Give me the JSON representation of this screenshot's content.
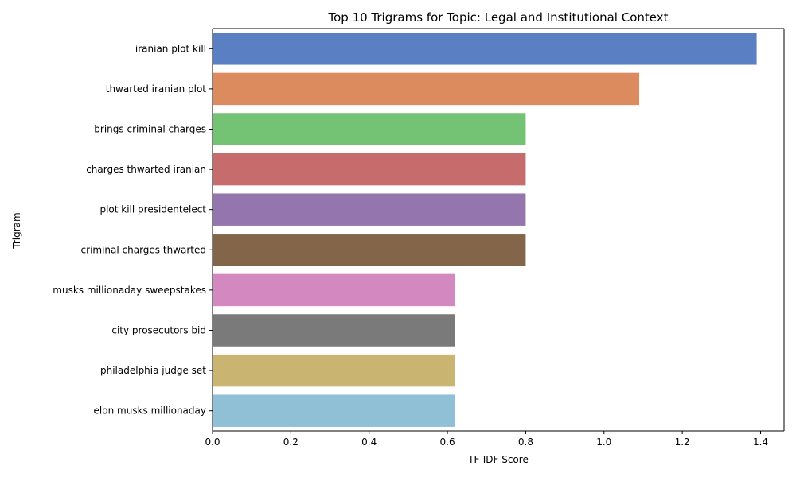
{
  "chart_data": {
    "type": "bar",
    "orientation": "horizontal",
    "title": "Top 10 Trigrams for Topic: Legal and Institutional Context",
    "xlabel": "TF-IDF Score",
    "ylabel": "Trigram",
    "xlim": [
      0,
      1.46
    ],
    "xticks": [
      "0.0",
      "0.2",
      "0.4",
      "0.6",
      "0.8",
      "1.0",
      "1.2",
      "1.4"
    ],
    "grid": false,
    "categories": [
      "iranian plot kill",
      "thwarted iranian plot",
      "brings criminal charges",
      "charges thwarted iranian",
      "plot kill presidentelect",
      "criminal charges thwarted",
      "musks millionaday sweepstakes",
      "city prosecutors bid",
      "philadelphia judge set",
      "elon musks millionaday"
    ],
    "values": [
      1.39,
      1.09,
      0.8,
      0.8,
      0.8,
      0.8,
      0.62,
      0.62,
      0.62,
      0.62
    ],
    "colors": [
      "#5a7fc3",
      "#db8b5e",
      "#74c274",
      "#c76c6d",
      "#9475ad",
      "#83654a",
      "#d388c0",
      "#7a7a7a",
      "#c9b571",
      "#8fc0d6"
    ]
  }
}
